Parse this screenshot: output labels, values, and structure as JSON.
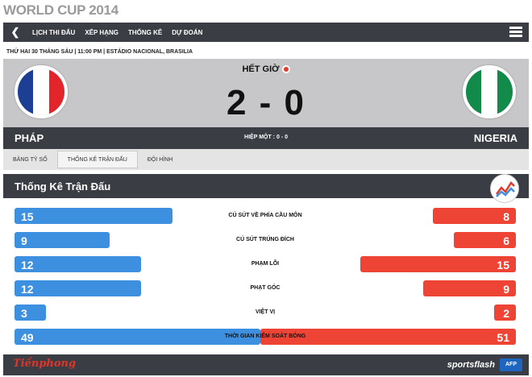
{
  "app": {
    "title": "WORLD CUP 2014"
  },
  "nav": {
    "items": [
      "LỊCH THI ĐẤU",
      "XẾP HẠNG",
      "THỐNG KÊ",
      "DỰ ĐOÁN"
    ],
    "back_icon": "chevron-left-icon",
    "menu_icon": "hamburger-menu-icon"
  },
  "match": {
    "info": "THỨ HAI 30 THÁNG SÁU | 11:00 PM | ESTÁDIO NACIONAL, BRASILIA",
    "status": "HẾT GIỜ",
    "score": "2 - 0",
    "half_score": "HIỆP MỘT : 0 - 0",
    "home": {
      "name": "PHÁP",
      "flag_colors": [
        "#1c3f94",
        "#ffffff",
        "#e4242b"
      ]
    },
    "away": {
      "name": "NIGERIA",
      "flag_colors": [
        "#118a4a",
        "#ffffff",
        "#118a4a"
      ]
    }
  },
  "tabs": [
    "BẢNG TỶ SỐ",
    "THỐNG KÊ TRẬN ĐẤU",
    "ĐỘI HÌNH"
  ],
  "active_tab": 1,
  "stats": {
    "title": "Thống Kê Trận Đấu",
    "rows": [
      {
        "label": "CÚ SÚT VỀ PHÍA CẦU MÔN",
        "home": "15",
        "away": "8",
        "home_share": 0.315,
        "away_share": 0.165
      },
      {
        "label": "CÚ SÚT TRÚNG ĐÍCH",
        "home": "9",
        "away": "6",
        "home_share": 0.189,
        "away_share": 0.123
      },
      {
        "label": "PHẠM LỖI",
        "home": "12",
        "away": "15",
        "home_share": 0.252,
        "away_share": 0.31
      },
      {
        "label": "PHẠT GÓC",
        "home": "12",
        "away": "9",
        "home_share": 0.252,
        "away_share": 0.185
      },
      {
        "label": "VIỆT VỊ",
        "home": "3",
        "away": "2",
        "home_share": 0.063,
        "away_share": 0.044
      },
      {
        "label": "THỜI GIAN KIỂM SOÁT BÓNG",
        "home": "49",
        "away": "51",
        "home_share": 0.49,
        "away_share": 0.51
      }
    ]
  },
  "footer": {
    "left_logo": "Tiềnphong",
    "right_logo": "sportsflash",
    "afp_logo": "AFP"
  },
  "colors": {
    "dark": "#3b3d45",
    "home_bar": "#3d8fe0",
    "away_bar": "#ee4435",
    "status_dot": "#e23a2d"
  }
}
